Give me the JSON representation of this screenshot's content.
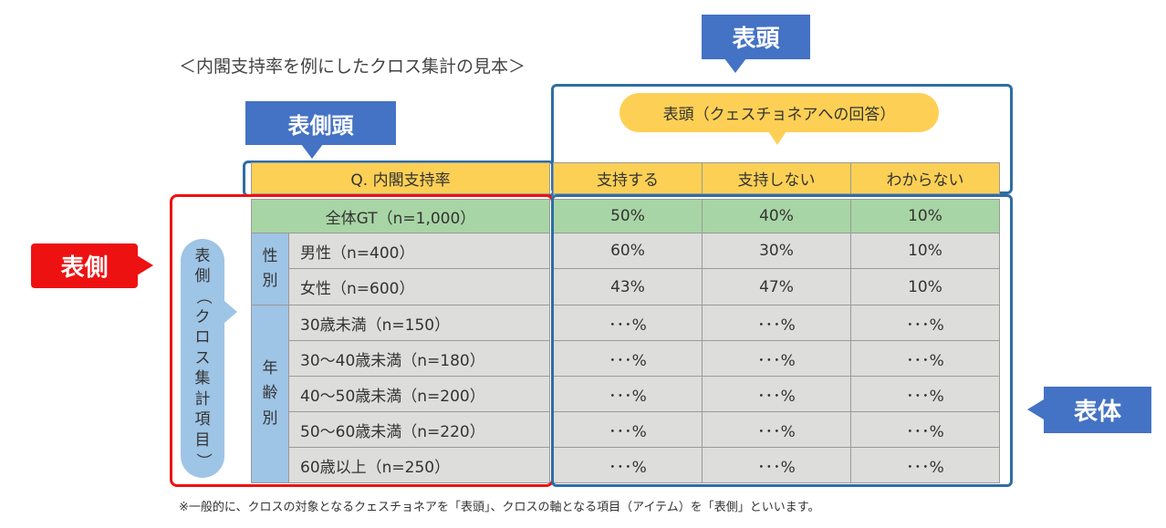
{
  "title": "＜内閣支持率を例にしたクロス集計の見本＞",
  "callouts": {
    "hyoto": "表頭",
    "hyosokuto": "表側頭",
    "hyosoku": "表側",
    "hyotai": "表体"
  },
  "bubble": "表頭（クェスチョネアへの回答）",
  "pill_label": [
    "表",
    "側",
    "（",
    "ク",
    "ロ",
    "ス",
    "集",
    "計",
    "項",
    "目",
    "）"
  ],
  "table": {
    "question": "Q. 内閣支持率",
    "columns": [
      "支持する",
      "支持しない",
      "わからない"
    ],
    "total": {
      "label": "全体GT（n=1,000）",
      "values": [
        "50%",
        "40%",
        "10%"
      ]
    },
    "groups": [
      {
        "name": [
          "性",
          "別"
        ],
        "rows": [
          {
            "label": "男性（n=400）",
            "values": [
              "60%",
              "30%",
              "10%"
            ]
          },
          {
            "label": "女性（n=600）",
            "values": [
              "43%",
              "47%",
              "10%"
            ]
          }
        ]
      },
      {
        "name": [
          "年",
          "齢",
          "別"
        ],
        "rows": [
          {
            "label": "30歳未満（n=150）",
            "values": [
              "･･･%",
              "･･･%",
              "･･･%"
            ]
          },
          {
            "label": "30～40歳未満（n=180）",
            "values": [
              "･･･%",
              "･･･%",
              "･･･%"
            ]
          },
          {
            "label": "40～50歳未満（n=200）",
            "values": [
              "･･･%",
              "･･･%",
              "･･･%"
            ]
          },
          {
            "label": "50～60歳未満（n=220）",
            "values": [
              "･･･%",
              "･･･%",
              "･･･%"
            ]
          },
          {
            "label": "60歳以上（n=250）",
            "values": [
              "･･･%",
              "･･･%",
              "･･･%"
            ]
          }
        ]
      }
    ]
  },
  "footnote": "※一般的に、クロスの対象となるクェスチョネアを「表頭」、クロスの軸となる項目（アイテム）を「表側」といいます。",
  "colors": {
    "callout_blue": "#4472c4",
    "frame_blue": "#2e6da4",
    "frame_red": "#ee1111",
    "header_yellow": "#fcd055",
    "total_green": "#a8d5a5",
    "body_gray": "#dddddb",
    "group_blue": "#9ec4e6"
  }
}
